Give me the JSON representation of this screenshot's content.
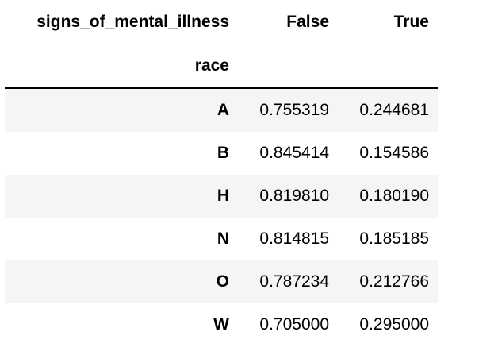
{
  "table": {
    "columns_name": "signs_of_mental_illness",
    "index_name": "race",
    "columns": [
      "False",
      "True"
    ],
    "rows": [
      {
        "index": "A",
        "values": [
          "0.755319",
          "0.244681"
        ]
      },
      {
        "index": "B",
        "values": [
          "0.845414",
          "0.154586"
        ]
      },
      {
        "index": "H",
        "values": [
          "0.819810",
          "0.180190"
        ]
      },
      {
        "index": "N",
        "values": [
          "0.814815",
          "0.185185"
        ]
      },
      {
        "index": "O",
        "values": [
          "0.787234",
          "0.212766"
        ]
      },
      {
        "index": "W",
        "values": [
          "0.705000",
          "0.295000"
        ]
      }
    ]
  },
  "chart_data": {
    "type": "table",
    "columns_name": "signs_of_mental_illness",
    "index_name": "race",
    "columns": [
      "False",
      "True"
    ],
    "index": [
      "A",
      "B",
      "H",
      "N",
      "O",
      "W"
    ],
    "values": [
      [
        0.755319,
        0.244681
      ],
      [
        0.845414,
        0.154586
      ],
      [
        0.81981,
        0.18019
      ],
      [
        0.814815,
        0.185185
      ],
      [
        0.787234,
        0.212766
      ],
      [
        0.705,
        0.295
      ]
    ]
  }
}
